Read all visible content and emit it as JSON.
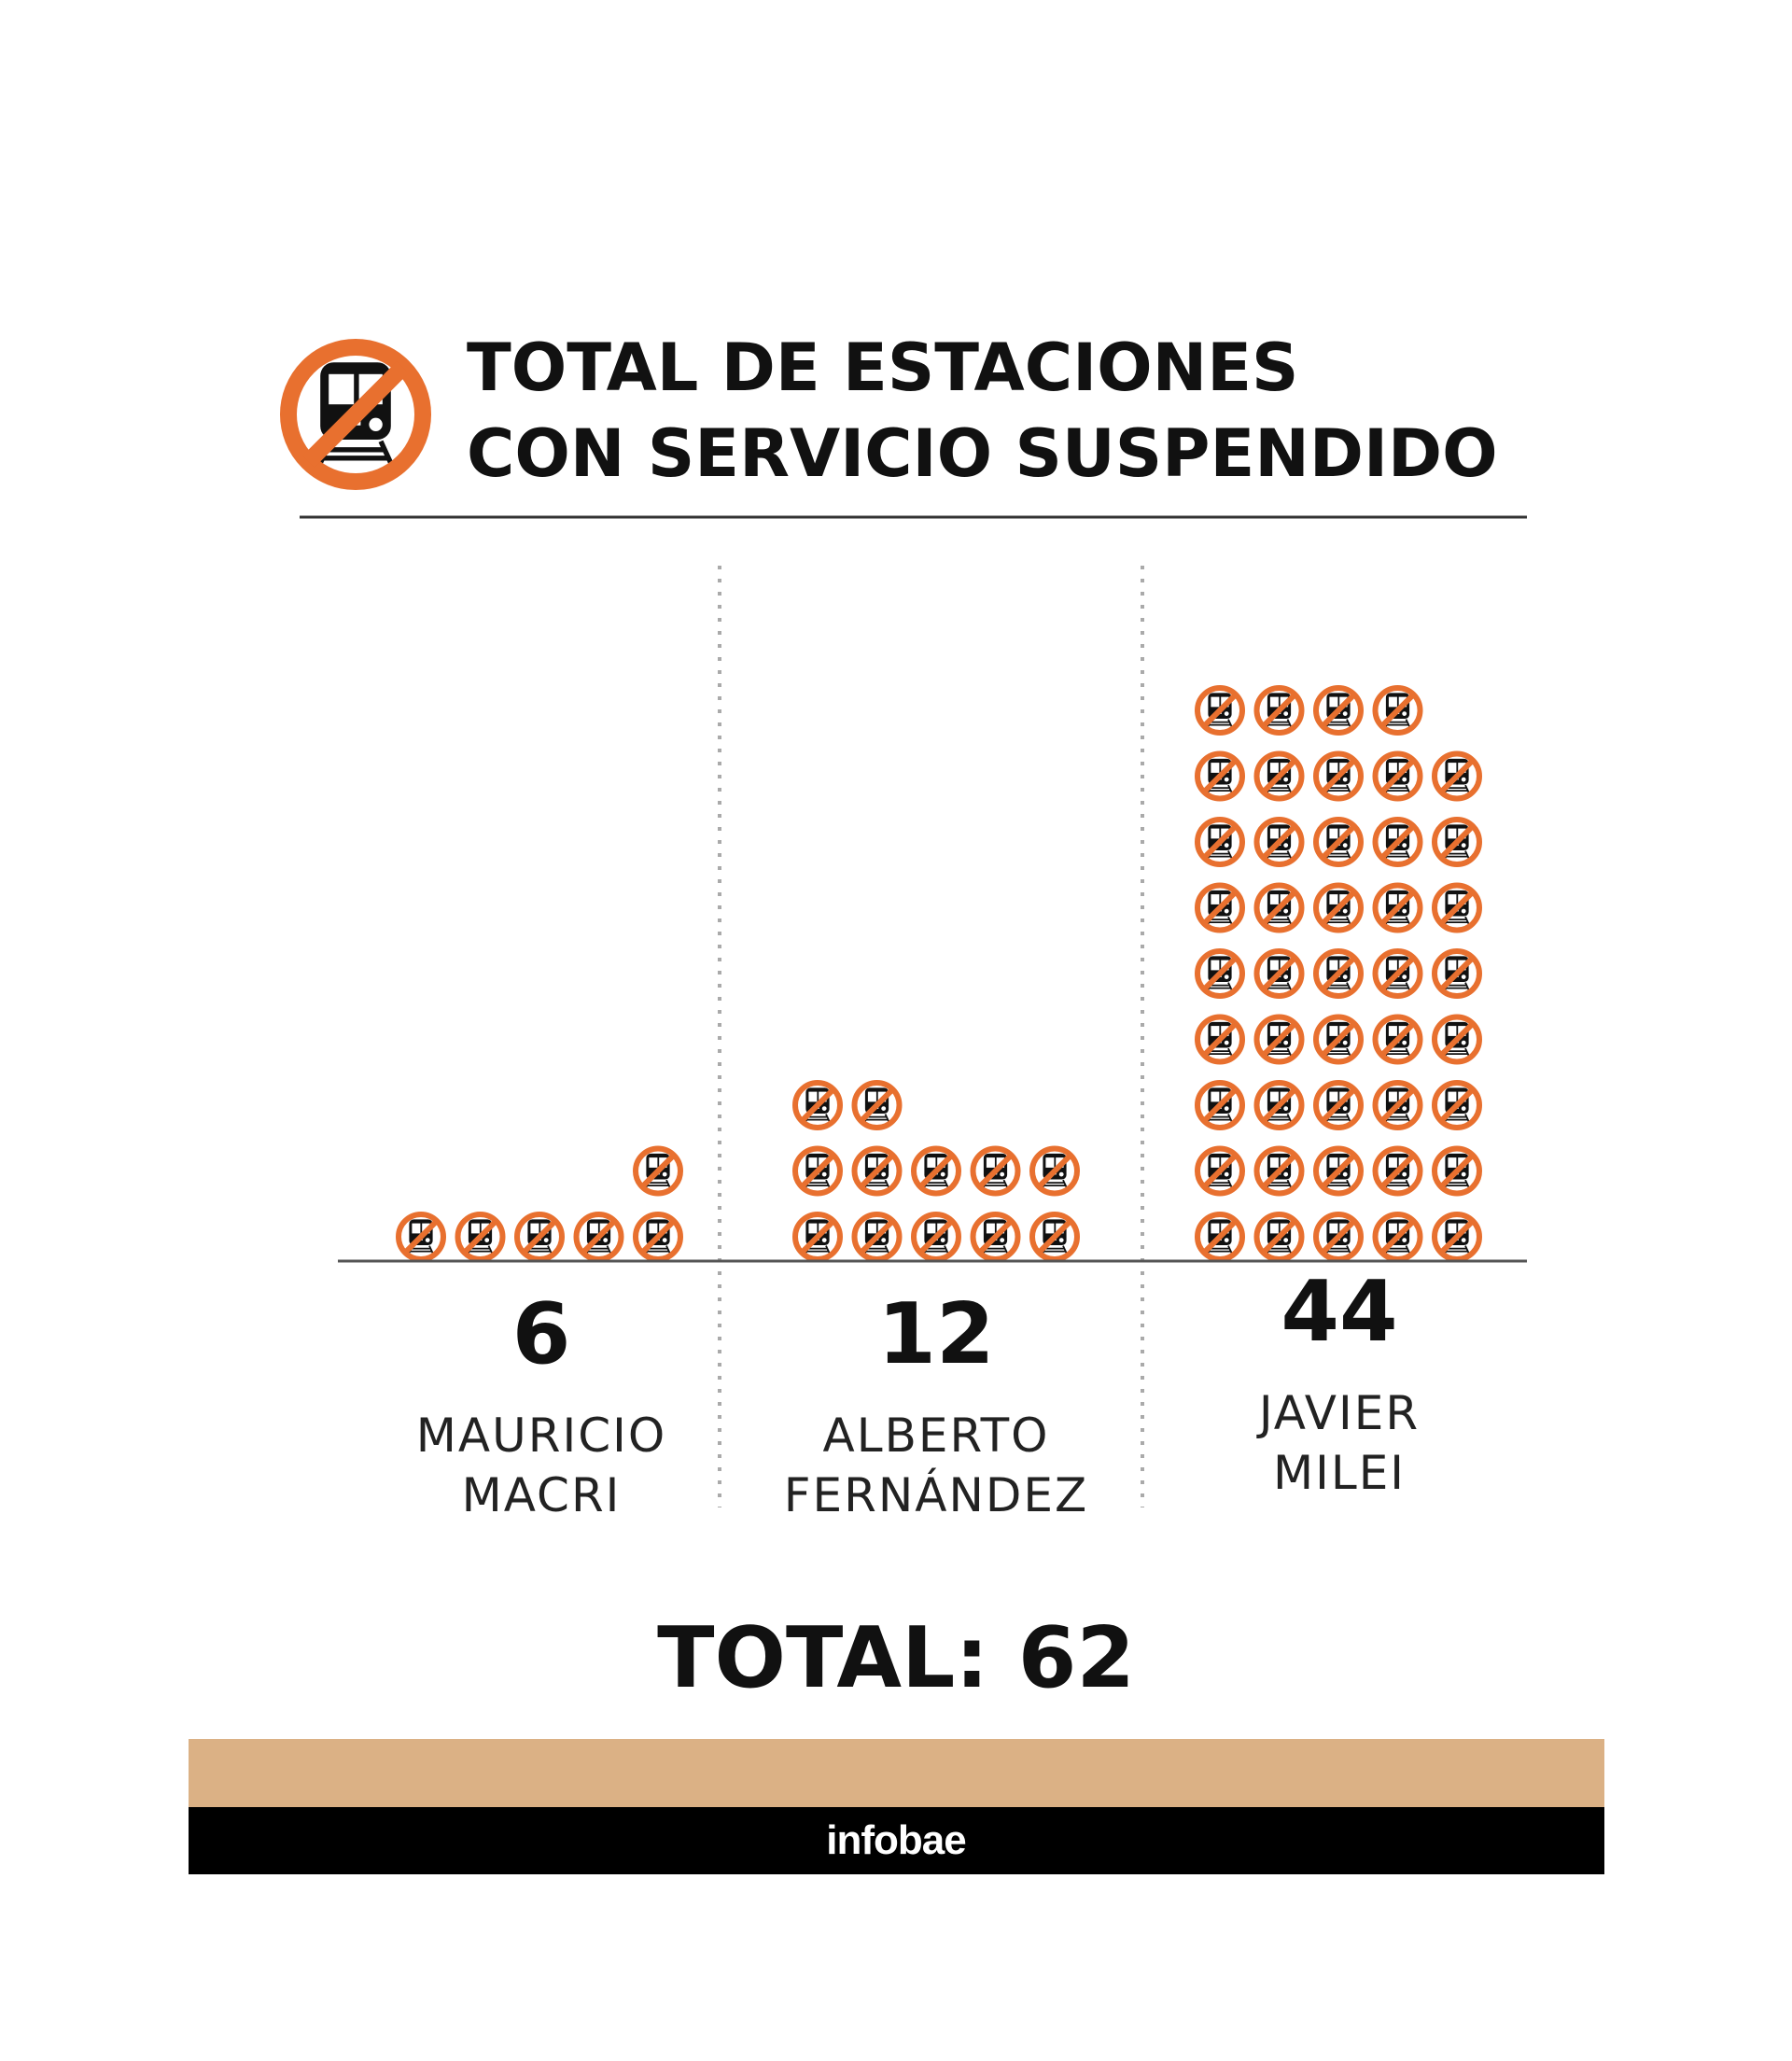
{
  "title": {
    "line1": "TOTAL DE ESTACIONES",
    "line2": "CON SERVICIO SUSPENDIDO",
    "icon": "no-train-icon"
  },
  "chart_data": {
    "type": "pictogram",
    "unit_icon": "no-train-icon",
    "icons_per_row": 5,
    "categories": [
      {
        "name_line1": "MAURICIO",
        "name_line2": "MACRI",
        "value": 6,
        "label": "6"
      },
      {
        "name_line1": "ALBERTO",
        "name_line2": "FERNÁNDEZ",
        "value": 12,
        "label": "12"
      },
      {
        "name_line1": "JAVIER",
        "name_line2": "MILEI",
        "value": 44,
        "label": "44"
      }
    ]
  },
  "total": {
    "text": "TOTAL: 62",
    "value": 62
  },
  "footer": {
    "brand": "infobae"
  },
  "colors": {
    "accent": "#e8702f",
    "band": "#dbb185",
    "footer": "#000000",
    "text": "#111111"
  }
}
